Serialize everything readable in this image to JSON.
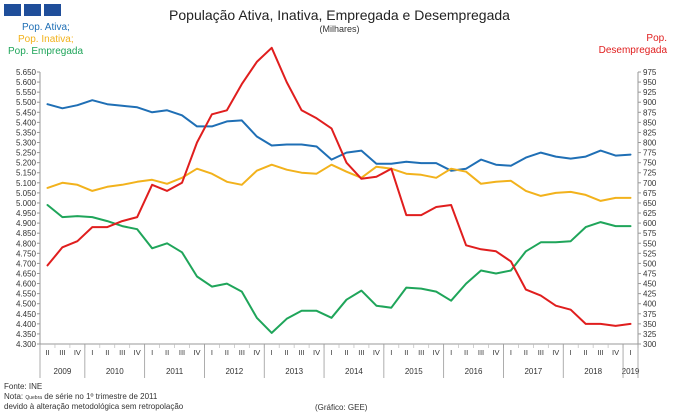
{
  "header": {
    "title": "População Ativa, Inativa, Empregada e Desempregada",
    "subtitle": "(Milhares)"
  },
  "legend": {
    "ativa": "Pop. Ativa;",
    "inativa": "Pop. Inativa;",
    "empregada": "Pop. Empregada",
    "desempregada_line1": "Pop.",
    "desempregada_line2": "Desempregada"
  },
  "footer": {
    "fonte": "Fonte: INE",
    "nota_prefix": "Nota:",
    "nota_word": "Quebra",
    "nota_rest": "de série no 1º trimestre de 2011",
    "nota_line2": "devido à alteração metodológica sem retropolação",
    "credit": "(Gráfico: GEE)"
  },
  "colors": {
    "ativa": "#1f6fb5",
    "inativa": "#f2b21c",
    "empregada": "#1fa55a",
    "desempregada": "#e01e1e",
    "legend_desemp": "#e01e1e"
  },
  "chart_data": {
    "type": "line",
    "left_axis": {
      "min": 4.3,
      "max": 5.65,
      "step": 0.05,
      "tick_labels": [
        "5.650",
        "5.600",
        "5.550",
        "5.500",
        "5.450",
        "5.400",
        "5.350",
        "5.300",
        "5.250",
        "5.200",
        "5.150",
        "5.100",
        "5.050",
        "5.000",
        "4.950",
        "4.900",
        "4.850",
        "4.800",
        "4.750",
        "4.700",
        "4.650",
        "4.600",
        "4.550",
        "4.500",
        "4.450",
        "4.400",
        "4.350",
        "4.300"
      ]
    },
    "right_axis": {
      "min": 300,
      "max": 975,
      "step": 25,
      "tick_labels": [
        "975",
        "950",
        "925",
        "900",
        "875",
        "850",
        "825",
        "800",
        "775",
        "750",
        "725",
        "700",
        "675",
        "650",
        "625",
        "600",
        "575",
        "550",
        "525",
        "500",
        "475",
        "450",
        "425",
        "400",
        "375",
        "350",
        "325",
        "300"
      ]
    },
    "quarters": [
      "II",
      "III",
      "IV",
      "I",
      "II",
      "III",
      "IV",
      "I",
      "II",
      "III",
      "IV",
      "I",
      "II",
      "III",
      "IV",
      "I",
      "II",
      "III",
      "IV",
      "I",
      "II",
      "III",
      "IV",
      "I",
      "II",
      "III",
      "IV",
      "I",
      "II",
      "III",
      "IV",
      "I",
      "II",
      "III",
      "IV",
      "I",
      "II",
      "III",
      "IV",
      "I"
    ],
    "years": [
      {
        "label": "2009",
        "start": 0,
        "end": 2
      },
      {
        "label": "2010",
        "start": 3,
        "end": 6
      },
      {
        "label": "2011",
        "start": 7,
        "end": 10
      },
      {
        "label": "2012",
        "start": 11,
        "end": 14
      },
      {
        "label": "2013",
        "start": 15,
        "end": 18
      },
      {
        "label": "2014",
        "start": 19,
        "end": 22
      },
      {
        "label": "2015",
        "start": 23,
        "end": 26
      },
      {
        "label": "2016",
        "start": 27,
        "end": 30
      },
      {
        "label": "2017",
        "start": 31,
        "end": 34
      },
      {
        "label": "2018",
        "start": 35,
        "end": 38
      },
      {
        "label": "2019",
        "start": 39,
        "end": 39
      }
    ],
    "series": [
      {
        "name": "Pop. Ativa",
        "key": "ativa",
        "axis": "left",
        "values": [
          5.49,
          5.47,
          5.485,
          5.51,
          5.49,
          5.482,
          5.475,
          5.45,
          5.46,
          5.435,
          5.38,
          5.38,
          5.405,
          5.41,
          5.33,
          5.285,
          5.29,
          5.29,
          5.28,
          5.215,
          5.25,
          5.26,
          5.195,
          5.195,
          5.205,
          5.198,
          5.198,
          5.16,
          5.17,
          5.215,
          5.19,
          5.185,
          5.225,
          5.25,
          5.23,
          5.22,
          5.23,
          5.26,
          5.235,
          5.24
        ]
      },
      {
        "name": "Pop. Inativa",
        "key": "inativa",
        "axis": "left",
        "values": [
          5.075,
          5.1,
          5.09,
          5.06,
          5.08,
          5.09,
          5.105,
          5.115,
          5.095,
          5.125,
          5.17,
          5.145,
          5.105,
          5.09,
          5.16,
          5.19,
          5.165,
          5.15,
          5.145,
          5.19,
          5.155,
          5.125,
          5.18,
          5.17,
          5.145,
          5.14,
          5.125,
          5.17,
          5.155,
          5.095,
          5.105,
          5.11,
          5.06,
          5.035,
          5.05,
          5.055,
          5.04,
          5.01,
          5.025,
          5.025
        ]
      },
      {
        "name": "Pop. Empregada",
        "key": "empregada",
        "axis": "left",
        "values": [
          4.99,
          4.93,
          4.935,
          4.93,
          4.91,
          4.885,
          4.87,
          4.775,
          4.8,
          4.755,
          4.635,
          4.585,
          4.6,
          4.56,
          4.43,
          4.355,
          4.425,
          4.465,
          4.465,
          4.43,
          4.52,
          4.565,
          4.49,
          4.48,
          4.58,
          4.575,
          4.56,
          4.515,
          4.6,
          4.665,
          4.65,
          4.665,
          4.76,
          4.805,
          4.805,
          4.81,
          4.88,
          4.905,
          4.885,
          4.885
        ]
      },
      {
        "name": "Pop. Desempregada",
        "key": "desempregada",
        "axis": "right",
        "values": [
          495,
          540,
          555,
          590,
          590,
          605,
          615,
          695,
          680,
          700,
          800,
          870,
          880,
          945,
          1000,
          1035,
          950,
          880,
          860,
          835,
          750,
          710,
          715,
          735,
          620,
          620,
          640,
          645,
          545,
          535,
          530,
          505,
          435,
          420,
          395,
          385,
          350,
          350,
          345,
          350
        ]
      }
    ]
  }
}
